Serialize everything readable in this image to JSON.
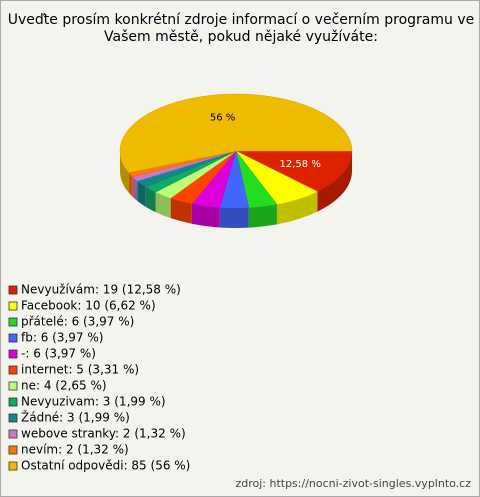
{
  "chart_data": {
    "type": "pie",
    "title": [
      "Uveďte prosím konkrétní zdroje informací o večerním programu ve",
      "Vašem městě, pokud nějaké využíváte:"
    ],
    "categories": [
      "Nevyužívám: 19 (12,58 %)",
      "Facebook: 10 (6,62 %)",
      "přátelé: 6 (3,97 %)",
      "fb: 6 (3,97 %)",
      "-: 6 (3,97 %)",
      "internet: 5 (3,31 %)",
      "ne: 4 (2,65 %)",
      "Nevyuzivam: 3 (1,99 %)",
      "Žádné: 3 (1,99 %)",
      "webove stranky: 2 (1,32 %)",
      "nevím: 2 (1,32 %)",
      "Ostatní odpovědi: 85 (56 %)"
    ],
    "values": [
      12.58,
      6.62,
      3.97,
      3.97,
      3.97,
      3.31,
      2.65,
      1.99,
      1.99,
      1.32,
      1.32,
      56
    ],
    "value_labels": [
      "12,58 %",
      null,
      null,
      null,
      null,
      null,
      null,
      null,
      null,
      null,
      null,
      "56 %"
    ],
    "colors": [
      "#dd2200",
      "#ffff00",
      "#22dd22",
      "#4466ff",
      "#dd00dd",
      "#ff4400",
      "#bbff77",
      "#11aa66",
      "#118888",
      "#cc77cc",
      "#ff7700",
      "#eebb00"
    ],
    "source": "zdroj: https://nocni-zivot-singles.vyplnto.cz"
  }
}
